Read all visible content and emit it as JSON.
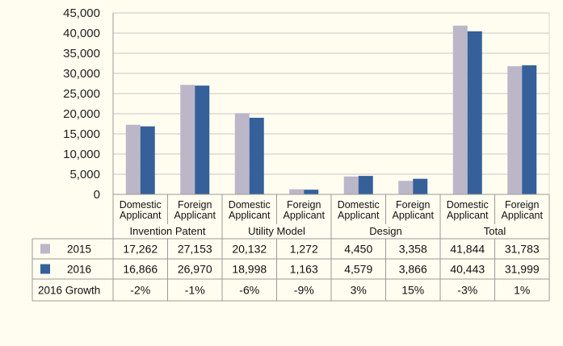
{
  "chart_data": {
    "type": "bar",
    "title": "",
    "xlabel": "",
    "ylabel": "",
    "ylim": [
      0,
      45000
    ],
    "yticks": [
      "0",
      "5,000",
      "10,000",
      "15,000",
      "20,000",
      "25,000",
      "30,000",
      "35,000",
      "40,000",
      "45,000"
    ],
    "gridlines": true,
    "groups": [
      {
        "name": "Invention Patent",
        "categories": [
          [
            "Domestic",
            "Applicant"
          ],
          [
            "Foreign",
            "Applicant"
          ]
        ]
      },
      {
        "name": "Utility Model",
        "categories": [
          [
            "Domestic",
            "Applicant"
          ],
          [
            "Foreign",
            "Applicant"
          ]
        ]
      },
      {
        "name": "Design",
        "categories": [
          [
            "Domestic",
            "Applicant"
          ],
          [
            "Foreign",
            "Applicant"
          ]
        ]
      },
      {
        "name": "Total",
        "categories": [
          [
            "Domestic",
            "Applicant"
          ],
          [
            "Foreign",
            "Applicant"
          ]
        ]
      }
    ],
    "series": [
      {
        "name": "2015",
        "color": "#bcb7c8",
        "values": [
          17262,
          27153,
          20132,
          1272,
          4450,
          3358,
          41844,
          31783
        ],
        "labels": [
          "17,262",
          "27,153",
          "20,132",
          "1,272",
          "4,450",
          "3,358",
          "41,844",
          "31,783"
        ]
      },
      {
        "name": "2016",
        "color": "#35609a",
        "values": [
          16866,
          26970,
          18998,
          1163,
          4579,
          3866,
          40443,
          31999
        ],
        "labels": [
          "16,866",
          "26,970",
          "18,998",
          "1,163",
          "4,579",
          "3,866",
          "40,443",
          "31,999"
        ]
      }
    ],
    "growth_row": {
      "label": "2016 Growth",
      "values": [
        "-2%",
        "-1%",
        "-6%",
        "-9%",
        "3%",
        "15%",
        "-3%",
        "1%"
      ]
    }
  }
}
